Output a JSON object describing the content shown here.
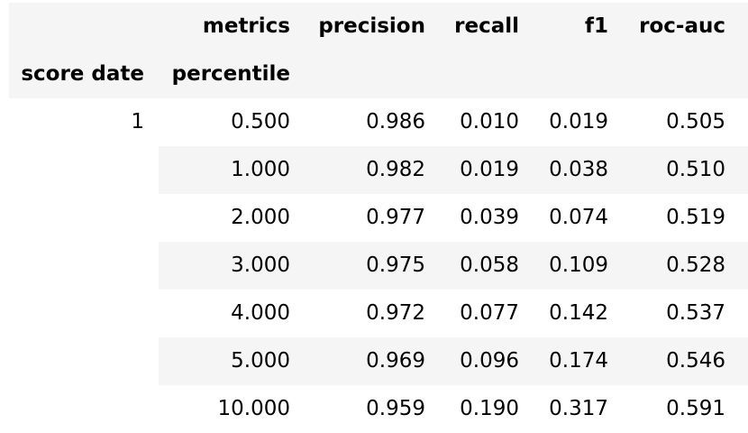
{
  "header": {
    "columns_label": "metrics",
    "columns": [
      "precision",
      "recall",
      "f1",
      "roc-auc"
    ],
    "index_names": [
      "score date",
      "percentile"
    ]
  },
  "rows": [
    {
      "score_date": "1",
      "percentile": "0.500",
      "precision": "0.986",
      "recall": "0.010",
      "f1": "0.019",
      "roc_auc": "0.505"
    },
    {
      "score_date": "",
      "percentile": "1.000",
      "precision": "0.982",
      "recall": "0.019",
      "f1": "0.038",
      "roc_auc": "0.510"
    },
    {
      "score_date": "",
      "percentile": "2.000",
      "precision": "0.977",
      "recall": "0.039",
      "f1": "0.074",
      "roc_auc": "0.519"
    },
    {
      "score_date": "",
      "percentile": "3.000",
      "precision": "0.975",
      "recall": "0.058",
      "f1": "0.109",
      "roc_auc": "0.528"
    },
    {
      "score_date": "",
      "percentile": "4.000",
      "precision": "0.972",
      "recall": "0.077",
      "f1": "0.142",
      "roc_auc": "0.537"
    },
    {
      "score_date": "",
      "percentile": "5.000",
      "precision": "0.969",
      "recall": "0.096",
      "f1": "0.174",
      "roc_auc": "0.546"
    },
    {
      "score_date": "",
      "percentile": "10.000",
      "precision": "0.959",
      "recall": "0.190",
      "f1": "0.317",
      "roc_auc": "0.591"
    }
  ],
  "colors": {
    "stripe": "#f5f5f5",
    "header_bg": "#f5f5f5",
    "text": "#000000"
  }
}
